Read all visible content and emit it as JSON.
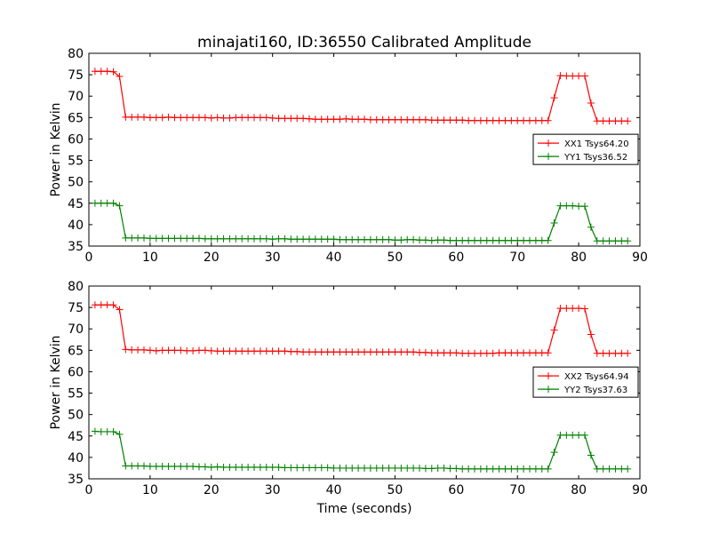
{
  "figure": {
    "title": "minajati160, ID:36550 Calibrated Amplitude"
  },
  "chart_data": [
    {
      "type": "line",
      "title": "minajati160, ID:36550 Calibrated Amplitude",
      "xlabel": "",
      "ylabel": "Power in Kelvin",
      "xlim": [
        0,
        90
      ],
      "ylim": [
        35,
        80
      ],
      "xticks": [
        0,
        10,
        20,
        30,
        40,
        50,
        60,
        70,
        80,
        90
      ],
      "yticks": [
        35,
        40,
        45,
        50,
        55,
        60,
        65,
        70,
        75,
        80
      ],
      "grid": false,
      "legend_position": "right",
      "x": [
        1,
        2,
        3,
        4,
        5,
        6,
        7,
        8,
        9,
        10,
        11,
        12,
        13,
        14,
        15,
        16,
        17,
        18,
        19,
        20,
        21,
        22,
        23,
        24,
        25,
        26,
        27,
        28,
        29,
        30,
        31,
        32,
        33,
        34,
        35,
        36,
        37,
        38,
        39,
        40,
        41,
        42,
        43,
        44,
        45,
        46,
        47,
        48,
        49,
        50,
        51,
        52,
        53,
        54,
        55,
        56,
        57,
        58,
        59,
        60,
        61,
        62,
        63,
        64,
        65,
        66,
        67,
        68,
        69,
        70,
        71,
        72,
        73,
        74,
        75,
        76,
        77,
        78,
        79,
        80,
        81,
        82,
        83,
        84,
        85,
        86,
        87,
        88
      ],
      "series": [
        {
          "name": "XX1 Tsys64.20",
          "color": "#ff0000",
          "values": [
            75.8,
            75.8,
            75.8,
            75.7,
            74.6,
            65.1,
            65.1,
            65.1,
            65.1,
            65.0,
            65.0,
            65.0,
            65.1,
            65.0,
            65.0,
            65.0,
            65.0,
            65.0,
            65.0,
            64.9,
            65.0,
            64.9,
            64.9,
            65.0,
            65.0,
            65.0,
            65.0,
            65.0,
            65.0,
            64.9,
            64.8,
            64.8,
            64.8,
            64.8,
            64.8,
            64.7,
            64.6,
            64.6,
            64.6,
            64.6,
            64.6,
            64.7,
            64.6,
            64.6,
            64.6,
            64.5,
            64.5,
            64.5,
            64.5,
            64.5,
            64.5,
            64.5,
            64.5,
            64.5,
            64.5,
            64.4,
            64.4,
            64.4,
            64.4,
            64.4,
            64.4,
            64.3,
            64.3,
            64.3,
            64.3,
            64.3,
            64.3,
            64.3,
            64.3,
            64.3,
            64.3,
            64.3,
            64.3,
            64.3,
            64.3,
            69.6,
            74.8,
            74.7,
            74.7,
            74.7,
            74.7,
            68.4,
            64.2,
            64.2,
            64.2,
            64.2,
            64.2,
            64.2
          ]
        },
        {
          "name": "YY1 Tsys36.52",
          "color": "#008000",
          "values": [
            45.0,
            45.0,
            45.0,
            45.0,
            44.4,
            36.9,
            36.9,
            36.9,
            36.9,
            36.8,
            36.8,
            36.8,
            36.8,
            36.8,
            36.8,
            36.8,
            36.8,
            36.8,
            36.7,
            36.7,
            36.7,
            36.7,
            36.7,
            36.7,
            36.7,
            36.7,
            36.7,
            36.7,
            36.7,
            36.6,
            36.7,
            36.7,
            36.6,
            36.6,
            36.6,
            36.6,
            36.6,
            36.6,
            36.6,
            36.6,
            36.5,
            36.5,
            36.5,
            36.5,
            36.5,
            36.5,
            36.5,
            36.5,
            36.5,
            36.4,
            36.4,
            36.5,
            36.5,
            36.4,
            36.4,
            36.3,
            36.4,
            36.4,
            36.3,
            36.3,
            36.3,
            36.3,
            36.3,
            36.3,
            36.3,
            36.3,
            36.3,
            36.3,
            36.3,
            36.3,
            36.3,
            36.3,
            36.3,
            36.3,
            36.3,
            40.4,
            44.4,
            44.4,
            44.4,
            44.3,
            44.3,
            39.4,
            36.2,
            36.2,
            36.2,
            36.2,
            36.2,
            36.2
          ]
        }
      ]
    },
    {
      "type": "line",
      "title": "",
      "xlabel": "Time (seconds)",
      "ylabel": "Power in Kelvin",
      "xlim": [
        0,
        90
      ],
      "ylim": [
        35,
        80
      ],
      "xticks": [
        0,
        10,
        20,
        30,
        40,
        50,
        60,
        70,
        80,
        90
      ],
      "yticks": [
        35,
        40,
        45,
        50,
        55,
        60,
        65,
        70,
        75,
        80
      ],
      "grid": false,
      "legend_position": "right",
      "x": [
        1,
        2,
        3,
        4,
        5,
        6,
        7,
        8,
        9,
        10,
        11,
        12,
        13,
        14,
        15,
        16,
        17,
        18,
        19,
        20,
        21,
        22,
        23,
        24,
        25,
        26,
        27,
        28,
        29,
        30,
        31,
        32,
        33,
        34,
        35,
        36,
        37,
        38,
        39,
        40,
        41,
        42,
        43,
        44,
        45,
        46,
        47,
        48,
        49,
        50,
        51,
        52,
        53,
        54,
        55,
        56,
        57,
        58,
        59,
        60,
        61,
        62,
        63,
        64,
        65,
        66,
        67,
        68,
        69,
        70,
        71,
        72,
        73,
        74,
        75,
        76,
        77,
        78,
        79,
        80,
        81,
        82,
        83,
        84,
        85,
        86,
        87,
        88
      ],
      "series": [
        {
          "name": "XX2 Tsys64.94",
          "color": "#ff0000",
          "values": [
            75.6,
            75.6,
            75.6,
            75.6,
            74.5,
            65.2,
            65.1,
            65.1,
            65.1,
            65.0,
            64.9,
            65.0,
            65.0,
            65.0,
            65.0,
            64.9,
            64.9,
            65.0,
            65.0,
            64.9,
            64.8,
            64.8,
            64.8,
            64.8,
            64.8,
            64.8,
            64.8,
            64.8,
            64.8,
            64.8,
            64.8,
            64.8,
            64.7,
            64.7,
            64.6,
            64.6,
            64.6,
            64.6,
            64.6,
            64.6,
            64.6,
            64.6,
            64.6,
            64.6,
            64.6,
            64.6,
            64.6,
            64.6,
            64.6,
            64.6,
            64.6,
            64.6,
            64.6,
            64.5,
            64.5,
            64.4,
            64.4,
            64.4,
            64.4,
            64.4,
            64.3,
            64.3,
            64.3,
            64.3,
            64.3,
            64.3,
            64.4,
            64.4,
            64.4,
            64.4,
            64.4,
            64.4,
            64.4,
            64.4,
            64.4,
            69.7,
            74.8,
            74.8,
            74.8,
            74.8,
            74.7,
            68.7,
            64.3,
            64.3,
            64.3,
            64.3,
            64.3,
            64.3
          ]
        },
        {
          "name": "YY2 Tsys37.63",
          "color": "#008000",
          "values": [
            46.1,
            46.0,
            46.0,
            46.0,
            45.4,
            38.0,
            38.0,
            38.0,
            38.0,
            37.9,
            37.9,
            37.9,
            37.9,
            37.9,
            37.9,
            37.9,
            37.9,
            37.8,
            37.8,
            37.7,
            37.8,
            37.7,
            37.7,
            37.7,
            37.7,
            37.7,
            37.7,
            37.7,
            37.7,
            37.7,
            37.7,
            37.6,
            37.6,
            37.6,
            37.6,
            37.6,
            37.6,
            37.6,
            37.6,
            37.5,
            37.5,
            37.5,
            37.5,
            37.5,
            37.5,
            37.5,
            37.5,
            37.5,
            37.5,
            37.5,
            37.5,
            37.5,
            37.5,
            37.5,
            37.4,
            37.4,
            37.5,
            37.5,
            37.4,
            37.4,
            37.3,
            37.3,
            37.3,
            37.3,
            37.3,
            37.3,
            37.3,
            37.3,
            37.3,
            37.3,
            37.3,
            37.3,
            37.3,
            37.3,
            37.3,
            41.2,
            45.2,
            45.2,
            45.2,
            45.2,
            45.2,
            40.5,
            37.3,
            37.3,
            37.3,
            37.3,
            37.3,
            37.3
          ]
        }
      ]
    }
  ]
}
